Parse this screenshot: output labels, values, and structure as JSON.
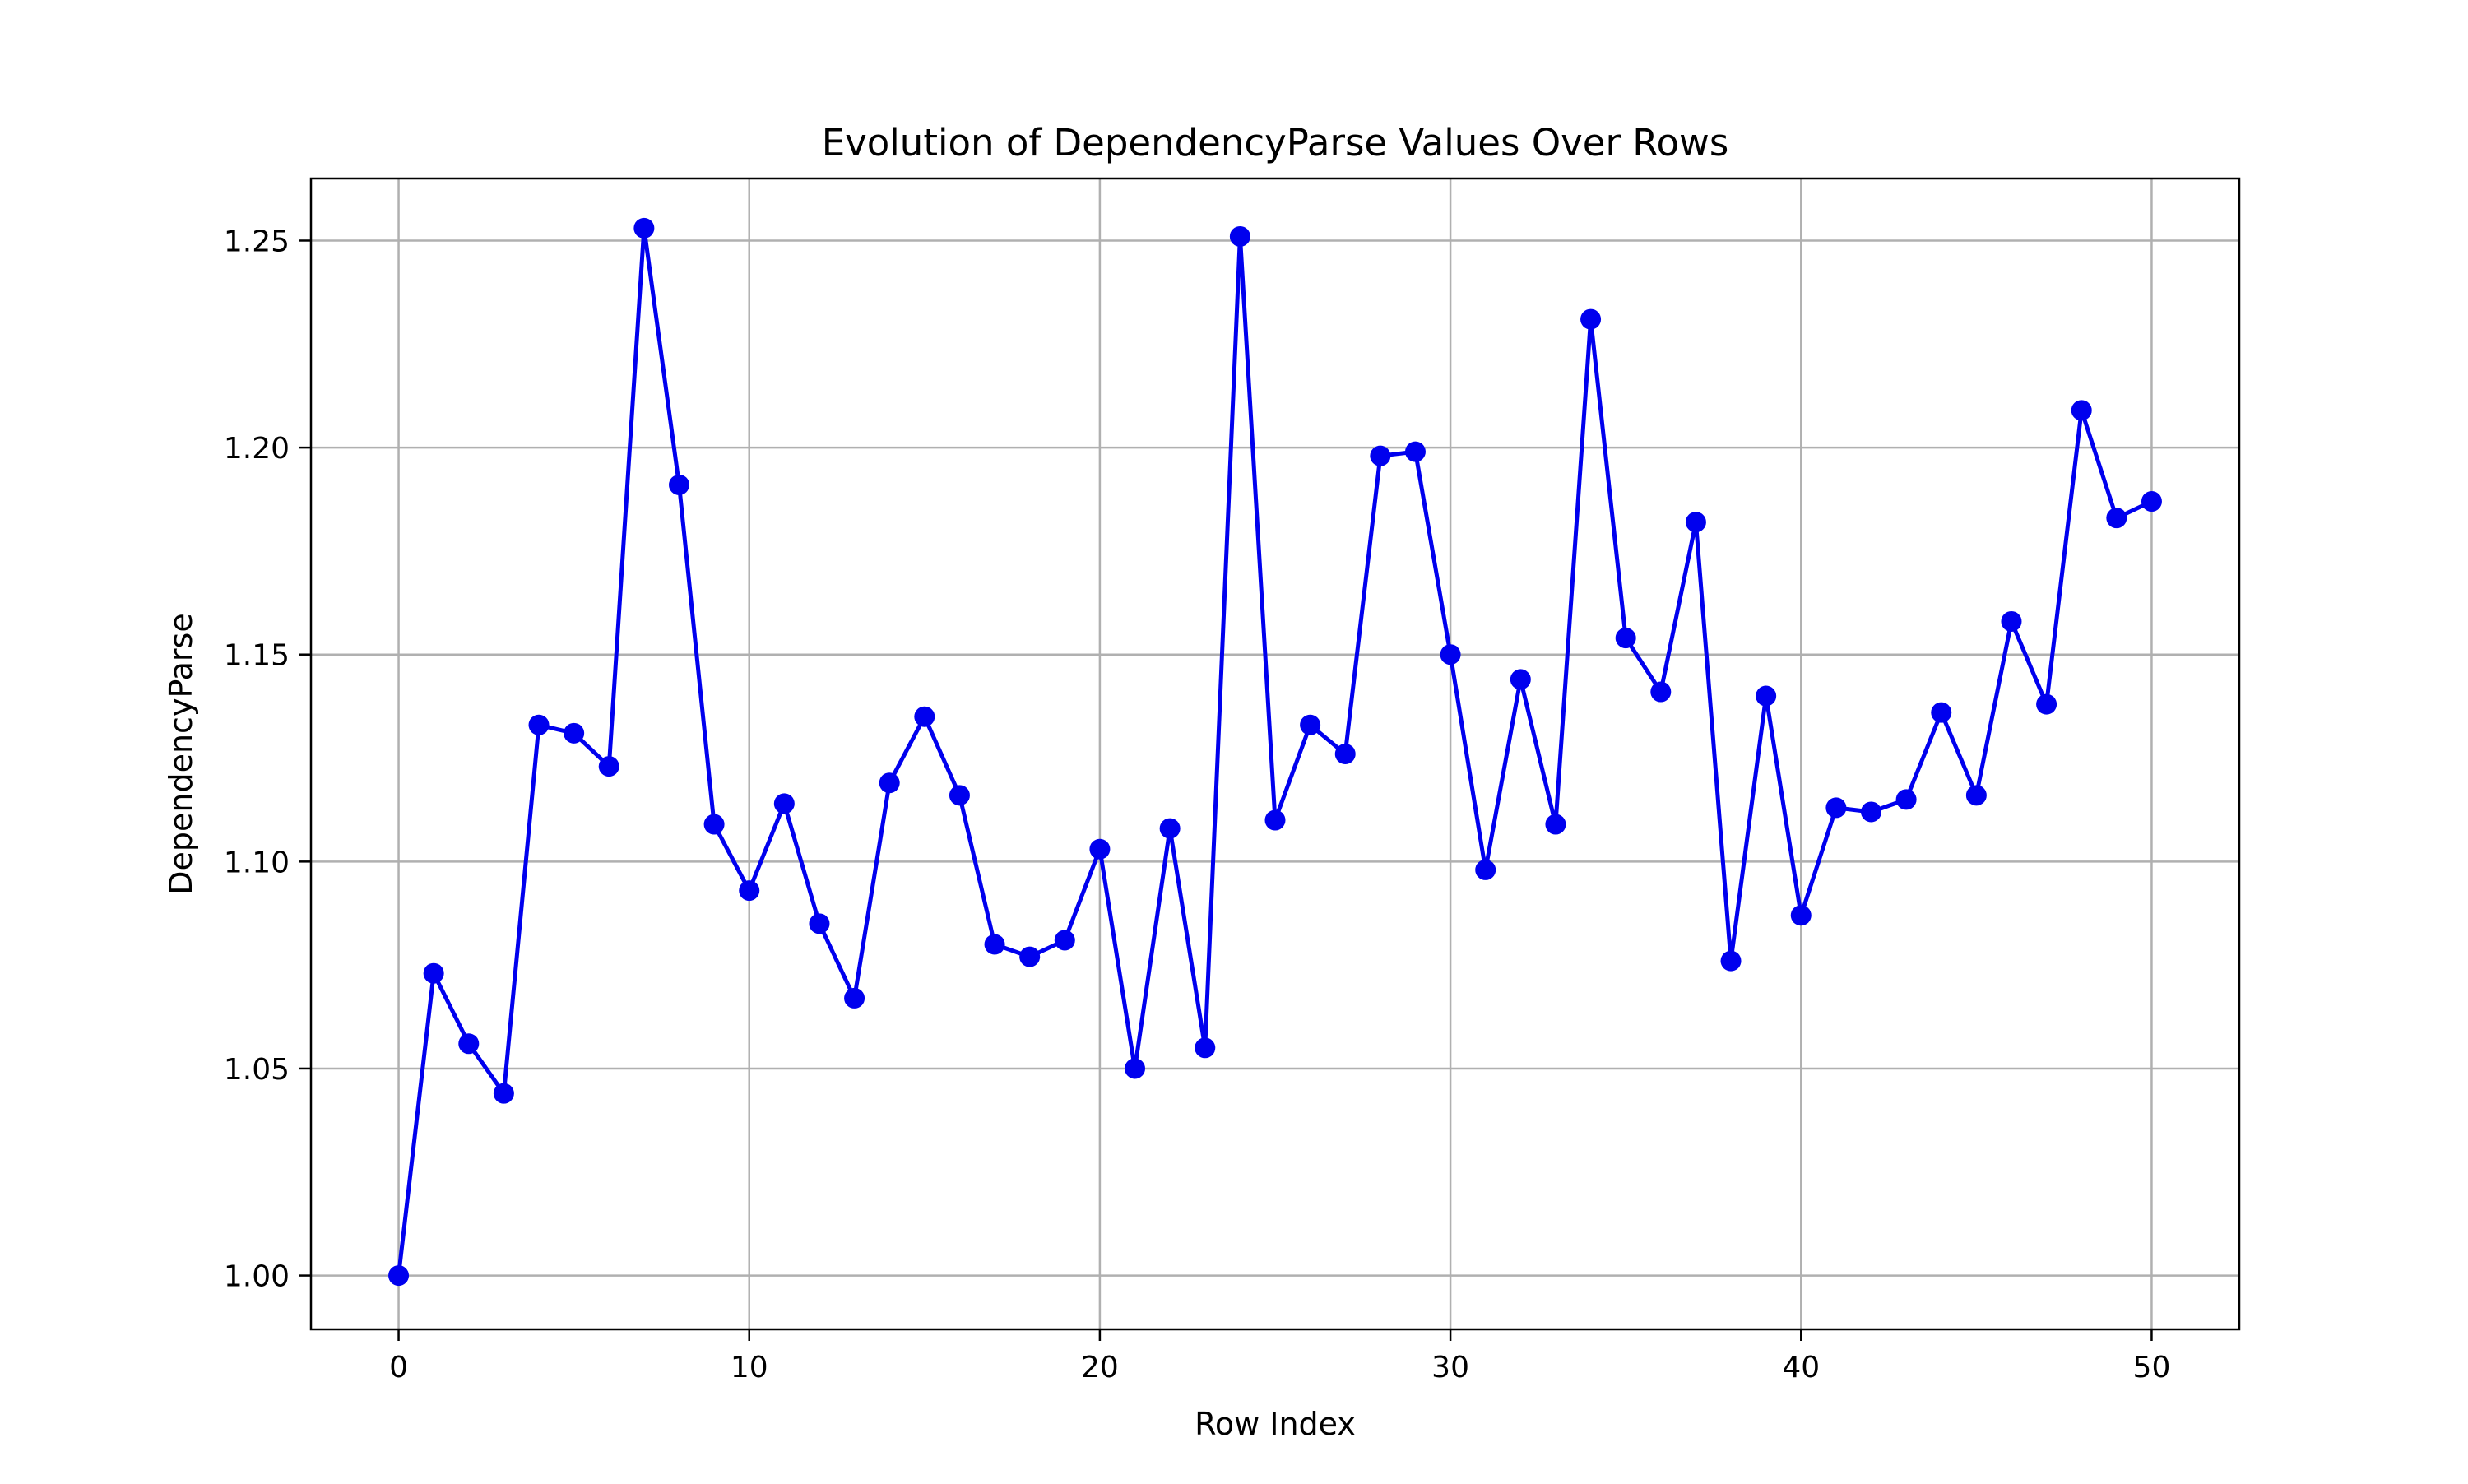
{
  "chart_data": {
    "type": "line",
    "title": "Evolution of DependencyParse Values Over Rows",
    "xlabel": "Row Index",
    "ylabel": "DependencyParse",
    "xlim": [
      -2.5,
      52.5
    ],
    "ylim": [
      0.987,
      1.265
    ],
    "xticks": [
      0,
      10,
      20,
      30,
      40,
      50
    ],
    "xtick_labels": [
      "0",
      "10",
      "20",
      "30",
      "40",
      "50"
    ],
    "yticks": [
      1.0,
      1.05,
      1.1,
      1.15,
      1.2,
      1.25
    ],
    "ytick_labels": [
      "1.00",
      "1.05",
      "1.10",
      "1.15",
      "1.20",
      "1.25"
    ],
    "grid": true,
    "legend": "none",
    "series": [
      {
        "color": "#0000ee",
        "marker": "circle",
        "x": [
          0,
          1,
          2,
          3,
          4,
          5,
          6,
          7,
          8,
          9,
          10,
          11,
          12,
          13,
          14,
          15,
          16,
          17,
          18,
          19,
          20,
          21,
          22,
          23,
          24,
          25,
          26,
          27,
          28,
          29,
          30,
          31,
          32,
          33,
          34,
          35,
          36,
          37,
          38,
          39,
          40,
          41,
          42,
          43,
          44,
          45,
          46,
          47,
          48,
          49,
          50
        ],
        "y": [
          1.0,
          1.073,
          1.056,
          1.044,
          1.133,
          1.131,
          1.123,
          1.253,
          1.191,
          1.109,
          1.093,
          1.114,
          1.085,
          1.067,
          1.119,
          1.135,
          1.116,
          1.08,
          1.077,
          1.081,
          1.103,
          1.05,
          1.108,
          1.055,
          1.251,
          1.11,
          1.133,
          1.126,
          1.198,
          1.199,
          1.15,
          1.098,
          1.144,
          1.109,
          1.231,
          1.154,
          1.141,
          1.182,
          1.076,
          1.14,
          1.087,
          1.113,
          1.112,
          1.115,
          1.136,
          1.116,
          1.158,
          1.138,
          1.209,
          1.183,
          1.187
        ]
      }
    ]
  }
}
